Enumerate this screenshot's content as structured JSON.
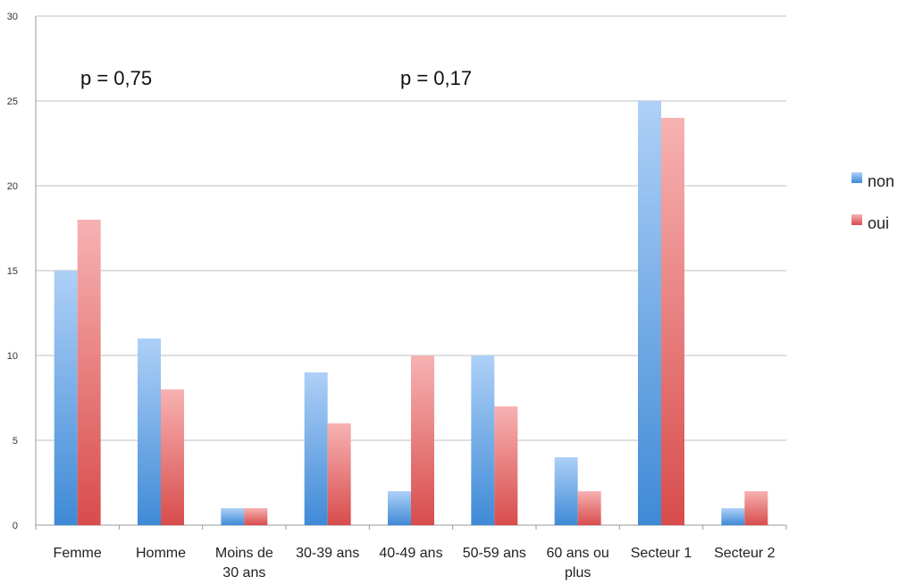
{
  "chart_data": {
    "type": "bar",
    "categories": [
      "Femme",
      "Homme",
      "Moins de\n30 ans",
      "30-39 ans",
      "40-49 ans",
      "50-59 ans",
      "60 ans ou\nplus",
      "Secteur 1",
      "Secteur 2"
    ],
    "series": [
      {
        "name": "non",
        "values": [
          15,
          11,
          1,
          9,
          2,
          10,
          4,
          25,
          1
        ]
      },
      {
        "name": "oui",
        "values": [
          18,
          8,
          1,
          6,
          10,
          7,
          2,
          24,
          2
        ]
      }
    ],
    "ylim": [
      0,
      30
    ],
    "yticks": [
      0,
      5,
      10,
      15,
      20,
      25,
      30
    ],
    "grid": true,
    "legend_position": "right",
    "annotations": [
      "p = 0,75",
      "p = 0,17"
    ],
    "colors": {
      "non": {
        "top": "#aed0f7",
        "bottom": "#3f8ad6"
      },
      "oui": {
        "top": "#f7b2b2",
        "bottom": "#d84c4c"
      },
      "grid": "#bfbfbf",
      "axis": "#999999"
    }
  }
}
